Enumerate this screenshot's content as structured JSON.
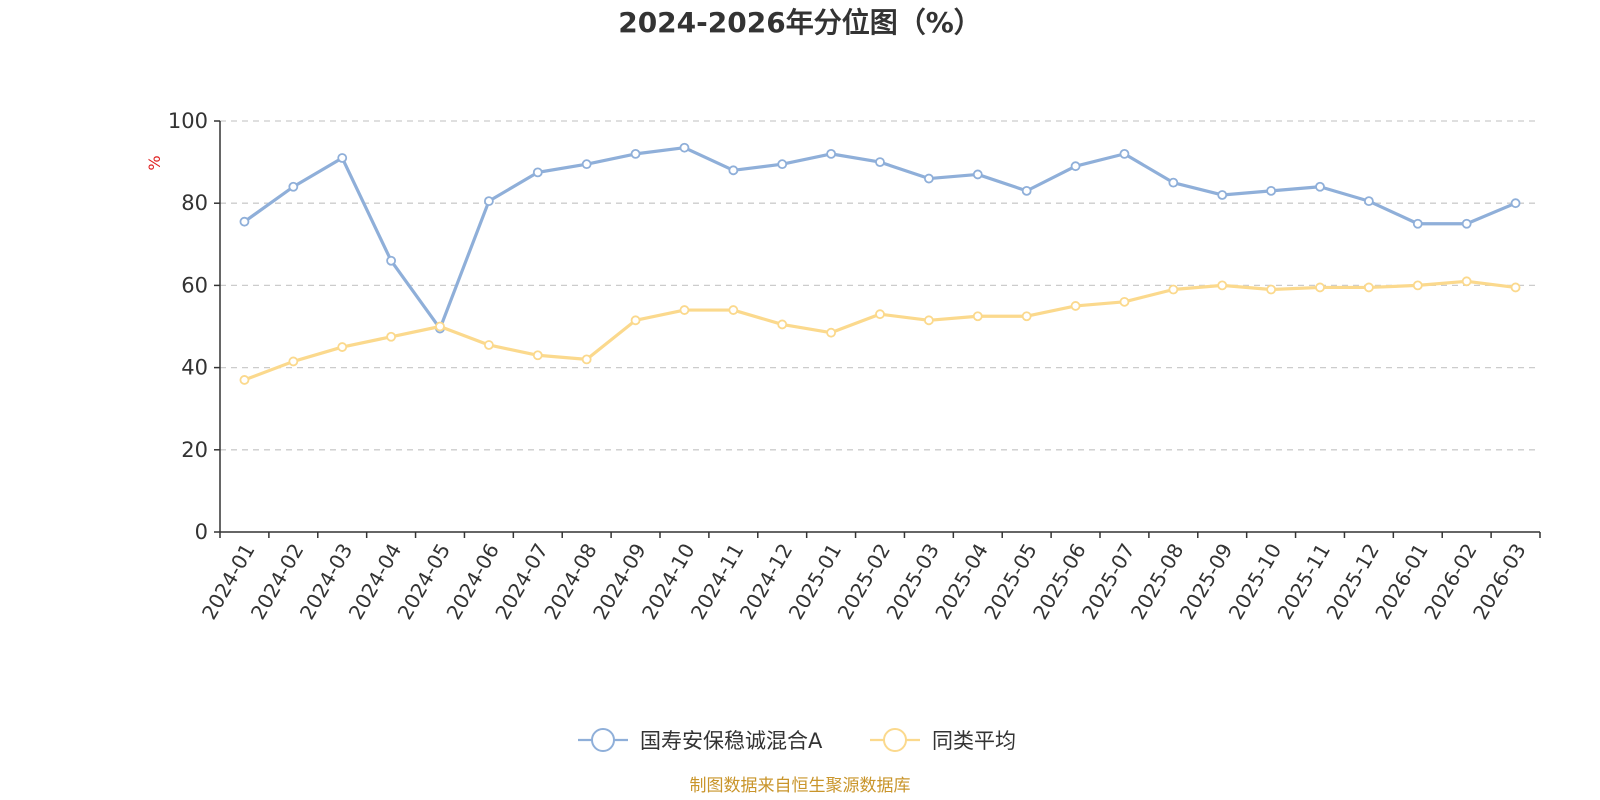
{
  "chart_data": {
    "type": "line",
    "title": "2024-2026年分位图（%）",
    "ylabel": "%",
    "ylim": [
      0,
      100
    ],
    "yticks": [
      0,
      20,
      40,
      60,
      80,
      100
    ],
    "grid": true,
    "legend_position": "bottom-center",
    "categories": [
      "2024-01",
      "2024-02",
      "2024-03",
      "2024-04",
      "2024-05",
      "2024-06",
      "2024-07",
      "2024-08",
      "2024-09",
      "2024-10",
      "2024-11",
      "2024-12",
      "2025-01",
      "2025-02",
      "2025-03",
      "2025-04",
      "2025-05",
      "2025-06",
      "2025-07",
      "2025-08",
      "2025-09",
      "2025-10",
      "2025-11",
      "2025-12",
      "2026-01",
      "2026-02",
      "2026-03"
    ],
    "series": [
      {
        "name": "国寿安保稳诚混合A",
        "color": "#8fafd9",
        "values": [
          75.5,
          84,
          91,
          66,
          49.5,
          80.5,
          87.5,
          89.5,
          92,
          93.5,
          88,
          89.5,
          92,
          90,
          86,
          87,
          83,
          89,
          92,
          85,
          82,
          83,
          84,
          80.5,
          75,
          75,
          80
        ]
      },
      {
        "name": "同类平均",
        "color": "#fbd98d",
        "values": [
          37,
          41.5,
          45,
          47.5,
          50,
          45.5,
          43,
          42,
          51.5,
          54,
          54,
          50.5,
          48.5,
          53,
          51.5,
          52.5,
          52.5,
          55,
          56,
          59,
          60,
          59,
          59.5,
          59.5,
          60,
          61,
          59.5
        ]
      }
    ]
  },
  "footer": {
    "source_text": "制图数据来自恒生聚源数据库",
    "color": "#c9952b"
  },
  "ylabel_color": "#e02020"
}
